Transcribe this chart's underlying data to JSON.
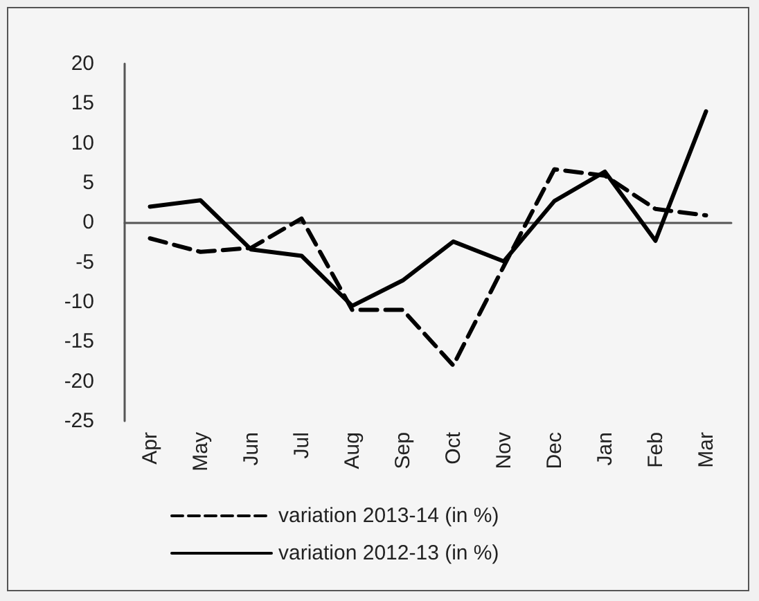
{
  "chart_data": {
    "type": "line",
    "categories": [
      "Apr",
      "May",
      "Jun",
      "Jul",
      "Aug",
      "Sep",
      "Oct",
      "Nov",
      "Dec",
      "Jan",
      "Feb",
      "Mar"
    ],
    "series": [
      {
        "name": "variation 2013-14 (in %)",
        "color": "#000000",
        "line_style": "dashed",
        "values": [
          -2,
          -3.7,
          -3.2,
          0.5,
          -11,
          -11,
          -18,
          -5.5,
          6.7,
          5.9,
          1.7,
          0.9
        ]
      },
      {
        "name": "variation 2012-13 (in %)",
        "color": "#000000",
        "line_style": "solid",
        "values": [
          2,
          2.8,
          -3.4,
          -4.2,
          -10.5,
          -7.3,
          -2.4,
          -4.9,
          2.7,
          6.4,
          -2.3,
          14
        ]
      }
    ],
    "ylim": [
      -25,
      20
    ],
    "yticks": [
      -25,
      -20,
      -15,
      -10,
      -5,
      0,
      5,
      10,
      15,
      20
    ],
    "legend": "bottom",
    "marker": "none"
  }
}
